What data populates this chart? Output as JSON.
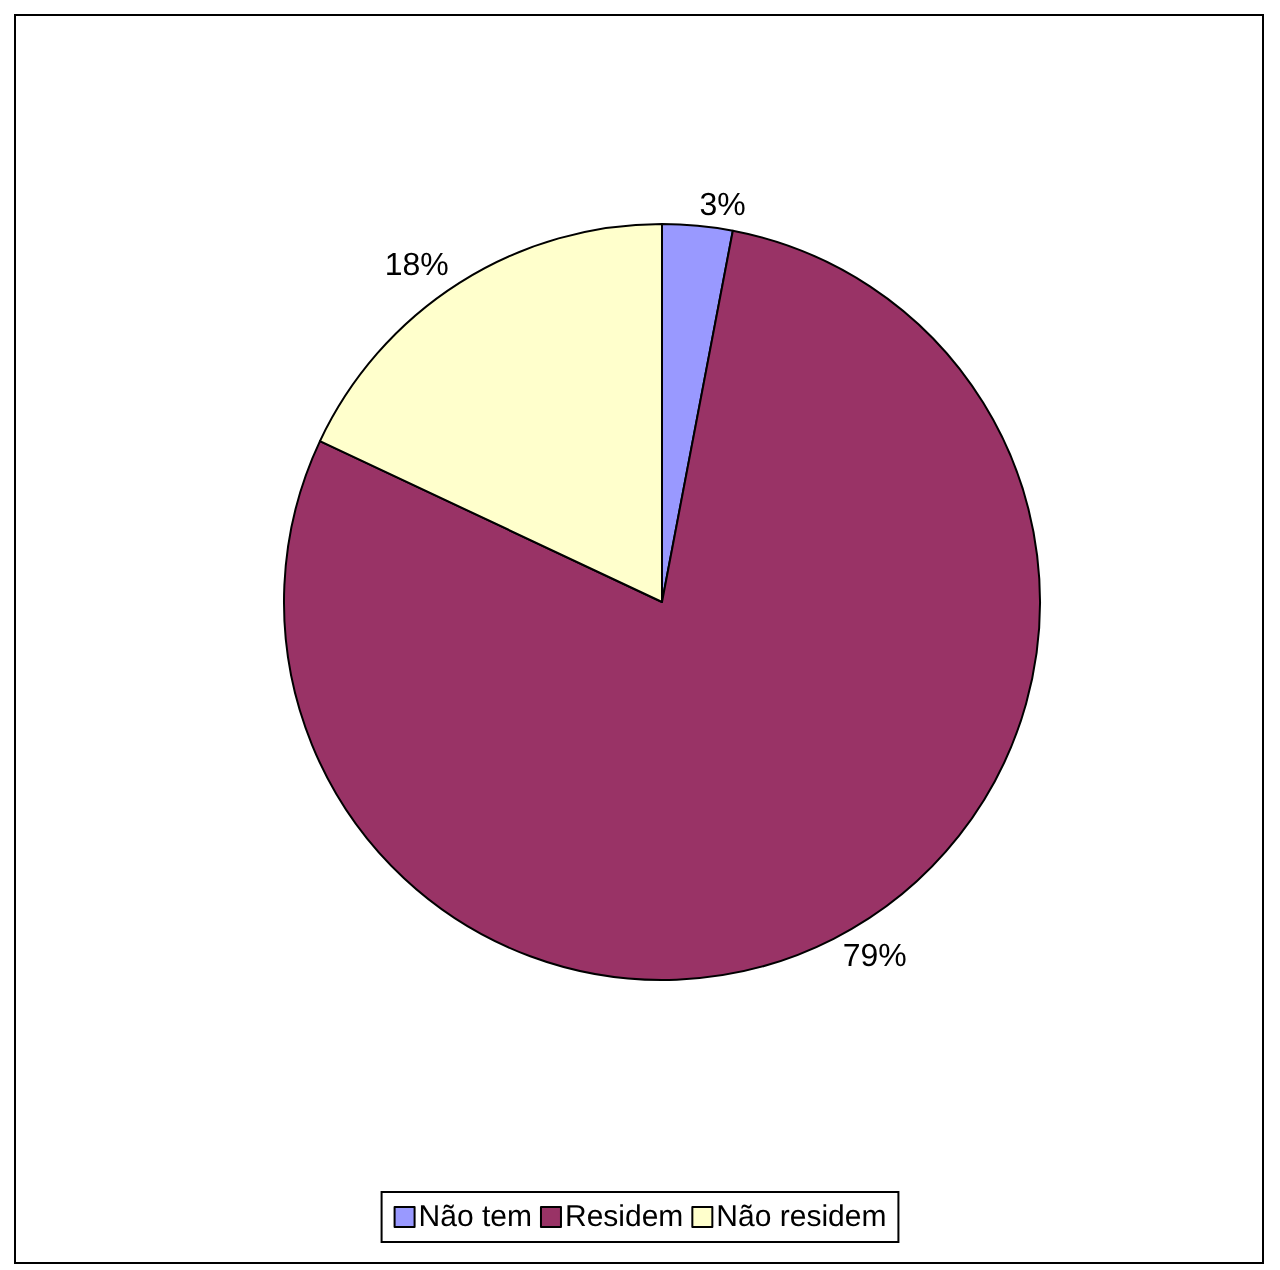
{
  "chart_data": {
    "type": "pie",
    "categories": [
      "Não tem",
      "Residem",
      "Não residem"
    ],
    "values": [
      3,
      79,
      18
    ],
    "colors": [
      "#9999ff",
      "#993366",
      "#ffffcc"
    ],
    "value_labels": [
      "3%",
      "79%",
      "18%"
    ],
    "legend": "bottom"
  }
}
